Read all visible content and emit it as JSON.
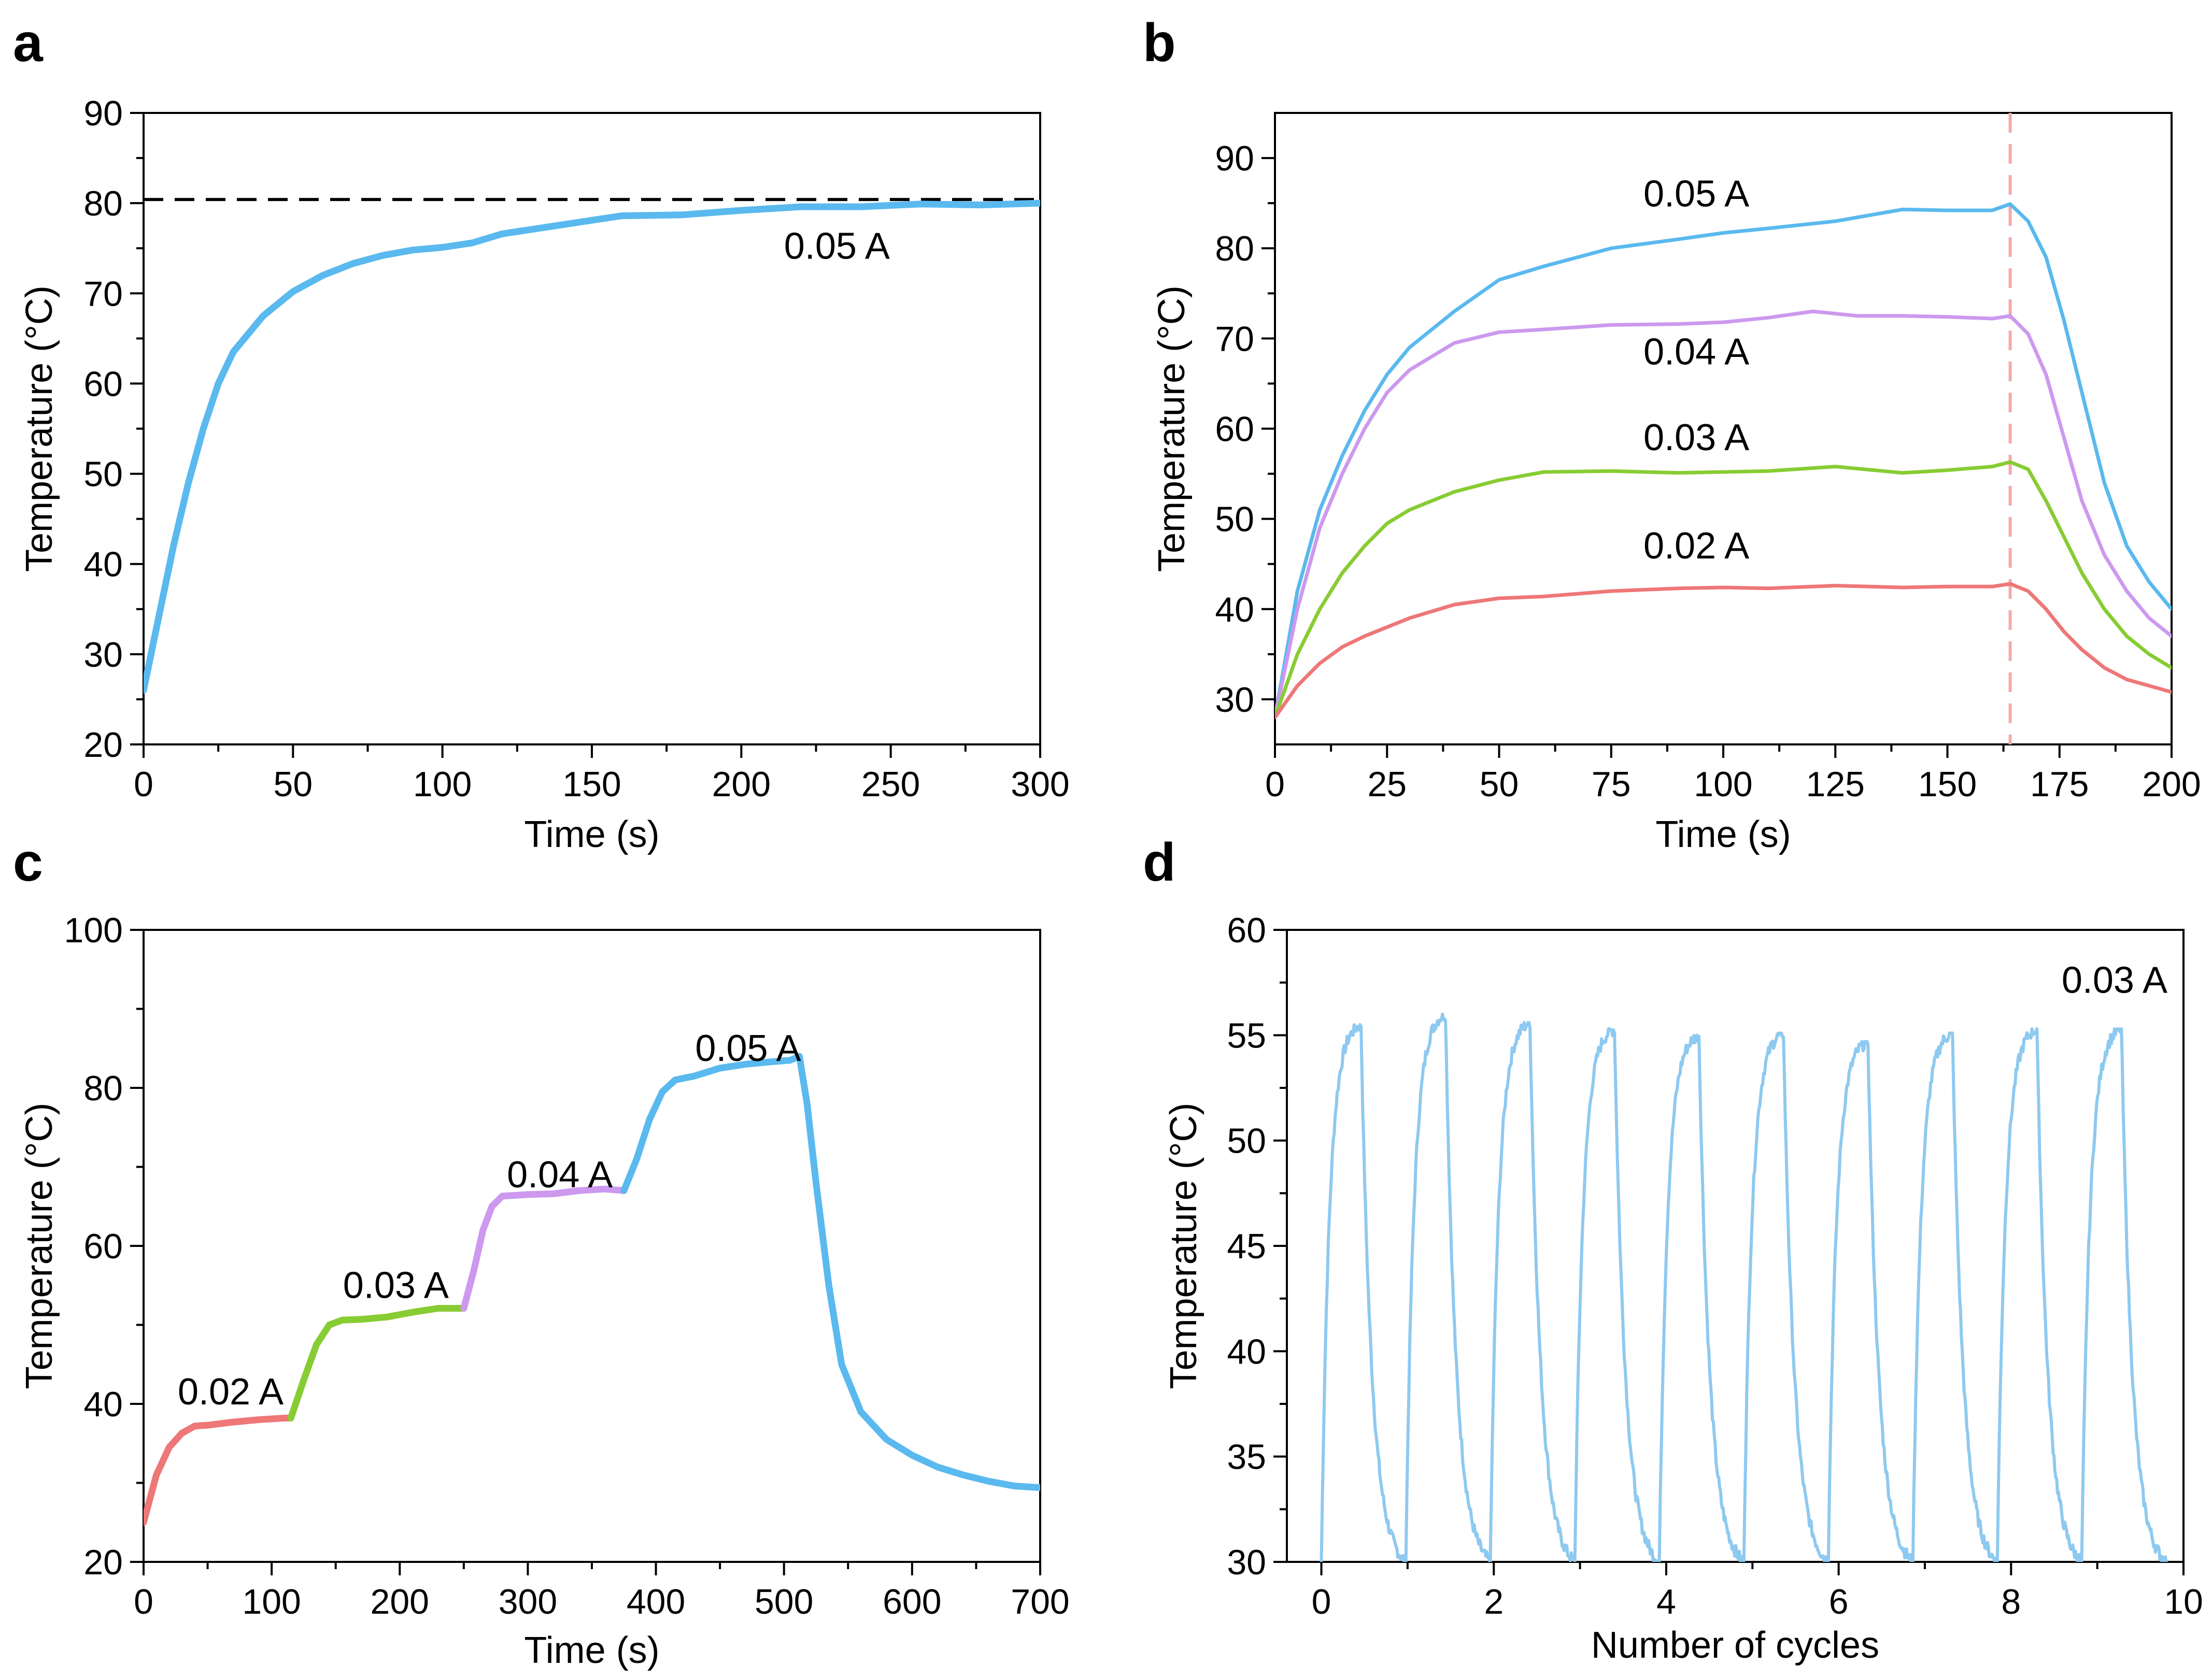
{
  "figure": {
    "panels": [
      "a",
      "b",
      "c",
      "d"
    ]
  },
  "chart_data": [
    {
      "panel": "a",
      "type": "line",
      "xlabel": "Time (s)",
      "ylabel": "Temperature (°C)",
      "xlim": [
        0,
        300
      ],
      "ylim": [
        20,
        90
      ],
      "xticks": [
        0,
        50,
        100,
        150,
        200,
        250,
        300
      ],
      "yticks": [
        20,
        30,
        40,
        50,
        60,
        70,
        80,
        90
      ],
      "reference_line": {
        "y": 80.4,
        "style": "dashed",
        "color": "#000000"
      },
      "annotations": [
        {
          "text": "0.05 A",
          "x": 232,
          "y": 75.2
        }
      ],
      "series": [
        {
          "name": "0.05 A",
          "color": "#5ab9ee",
          "x": [
            0,
            5,
            10,
            15,
            20,
            25,
            30,
            40,
            50,
            60,
            70,
            80,
            90,
            100,
            110,
            120,
            140,
            160,
            180,
            200,
            220,
            240,
            260,
            280,
            300
          ],
          "y": [
            26,
            34,
            42,
            49,
            55,
            60,
            63.5,
            67.5,
            70.2,
            72,
            73.3,
            74.2,
            74.8,
            75.1,
            75.6,
            76.6,
            77.6,
            78.6,
            78.7,
            79.2,
            79.6,
            79.6,
            79.9,
            79.8,
            80
          ]
        }
      ]
    },
    {
      "panel": "b",
      "type": "line",
      "xlabel": "Time (s)",
      "ylabel": "Temperature (°C)",
      "xlim": [
        0,
        200
      ],
      "ylim": [
        25,
        95
      ],
      "xticks": [
        0,
        25,
        50,
        75,
        100,
        125,
        150,
        175,
        200
      ],
      "yticks": [
        30,
        40,
        50,
        60,
        70,
        80,
        90
      ],
      "reference_line": {
        "x": 164,
        "style": "dashed",
        "color": "#f4aaaa"
      },
      "annotations": [
        {
          "text": "0.05 A",
          "x": 94,
          "y": 86
        },
        {
          "text": "0.04 A",
          "x": 94,
          "y": 68.5
        },
        {
          "text": "0.03 A",
          "x": 94,
          "y": 59
        },
        {
          "text": "0.02 A",
          "x": 94,
          "y": 47
        }
      ],
      "series": [
        {
          "name": "0.05 A",
          "color": "#5ab9ee",
          "x": [
            0,
            5,
            10,
            15,
            20,
            25,
            30,
            40,
            50,
            60,
            75,
            90,
            100,
            110,
            125,
            140,
            150,
            160,
            164,
            168,
            172,
            176,
            180,
            185,
            190,
            195,
            200
          ],
          "y": [
            28,
            42,
            51,
            57,
            62,
            66,
            69,
            73,
            76.5,
            78,
            80,
            81,
            81.7,
            82.2,
            83,
            84.3,
            84.2,
            84.2,
            84.9,
            83,
            79,
            72,
            64,
            54,
            47,
            43,
            40
          ]
        },
        {
          "name": "0.04 A",
          "color": "#cc99ee",
          "x": [
            0,
            5,
            10,
            15,
            20,
            25,
            30,
            40,
            50,
            60,
            75,
            90,
            100,
            110,
            120,
            130,
            140,
            150,
            160,
            164,
            168,
            172,
            176,
            180,
            185,
            190,
            195,
            200
          ],
          "y": [
            28,
            40,
            49,
            55,
            60,
            64,
            66.5,
            69.5,
            70.7,
            71,
            71.5,
            71.6,
            71.8,
            72.3,
            73,
            72.5,
            72.5,
            72.4,
            72.2,
            72.5,
            70.5,
            66,
            59,
            52,
            46,
            42,
            39,
            37
          ]
        },
        {
          "name": "0.03 A",
          "color": "#88cc33",
          "x": [
            0,
            5,
            10,
            15,
            20,
            25,
            30,
            40,
            50,
            60,
            75,
            90,
            100,
            110,
            125,
            140,
            150,
            160,
            164,
            168,
            172,
            176,
            180,
            185,
            190,
            195,
            200
          ],
          "y": [
            28,
            35,
            40,
            44,
            47,
            49.5,
            51,
            53,
            54.3,
            55.2,
            55.3,
            55.1,
            55.2,
            55.3,
            55.8,
            55.1,
            55.4,
            55.8,
            56.3,
            55.5,
            52,
            48,
            44,
            40,
            37,
            35,
            33.5
          ]
        },
        {
          "name": "0.02 A",
          "color": "#ee7777",
          "x": [
            0,
            5,
            10,
            15,
            20,
            25,
            30,
            40,
            50,
            60,
            75,
            90,
            100,
            110,
            125,
            140,
            150,
            160,
            164,
            168,
            172,
            176,
            180,
            185,
            190,
            195,
            200
          ],
          "y": [
            28,
            31.5,
            34,
            35.8,
            37,
            38,
            39,
            40.5,
            41.2,
            41.4,
            42,
            42.3,
            42.4,
            42.3,
            42.6,
            42.4,
            42.5,
            42.5,
            42.8,
            42,
            40,
            37.5,
            35.5,
            33.5,
            32.2,
            31.5,
            30.8
          ]
        }
      ]
    },
    {
      "panel": "c",
      "type": "line",
      "xlabel": "Time (s)",
      "ylabel": "Temperature (°C)",
      "xlim": [
        0,
        700
      ],
      "ylim": [
        20,
        100
      ],
      "xticks": [
        0,
        100,
        200,
        300,
        400,
        500,
        600,
        700
      ],
      "yticks": [
        20,
        40,
        60,
        80,
        100
      ],
      "annotations": [
        {
          "text": "0.02 A",
          "x": 68,
          "y": 41.5
        },
        {
          "text": "0.03 A",
          "x": 197,
          "y": 55
        },
        {
          "text": "0.04 A",
          "x": 325,
          "y": 69
        },
        {
          "text": "0.05 A",
          "x": 472,
          "y": 85
        }
      ],
      "series": [
        {
          "name": "0.02 A",
          "color": "#ee7777",
          "x": [
            0,
            10,
            20,
            30,
            40,
            50,
            70,
            90,
            110,
            115
          ],
          "y": [
            25,
            31,
            34.5,
            36.3,
            37.2,
            37.3,
            37.7,
            38,
            38.2,
            38.2
          ]
        },
        {
          "name": "0.03 A",
          "color": "#88cc33",
          "x": [
            115,
            125,
            135,
            145,
            155,
            170,
            190,
            210,
            230,
            245,
            250
          ],
          "y": [
            38.2,
            43,
            47.5,
            50,
            50.6,
            50.7,
            51,
            51.6,
            52.1,
            52.1,
            52.1
          ]
        },
        {
          "name": "0.04 A",
          "color": "#cc99ee",
          "x": [
            250,
            258,
            265,
            272,
            280,
            300,
            320,
            340,
            360,
            375
          ],
          "y": [
            52.1,
            57,
            62,
            65,
            66.3,
            66.5,
            66.6,
            67,
            67.2,
            67
          ]
        },
        {
          "name": "0.05 A",
          "color": "#5ab9ee",
          "x": [
            375,
            385,
            395,
            405,
            415,
            430,
            450,
            470,
            490,
            505,
            512,
            518,
            525,
            535,
            545,
            560,
            580,
            600,
            620,
            640,
            660,
            680,
            700
          ],
          "y": [
            67,
            71,
            76,
            79.5,
            81,
            81.5,
            82.5,
            83,
            83.3,
            83.5,
            84,
            78,
            68,
            55,
            45,
            39,
            35.5,
            33.5,
            32,
            31,
            30.2,
            29.6,
            29.4
          ]
        }
      ]
    },
    {
      "panel": "d",
      "type": "line",
      "xlabel": "Number of cycles",
      "ylabel": "Temperature (°C)",
      "xlim": [
        -0.4,
        10
      ],
      "ylim": [
        30,
        60
      ],
      "xticks": [
        0,
        2,
        4,
        6,
        8,
        10
      ],
      "yticks": [
        30,
        35,
        40,
        45,
        50,
        55,
        60
      ],
      "annotations": [
        {
          "text": "0.03 A",
          "x": 9.2,
          "y": 57.6
        }
      ],
      "cycle": {
        "count": 10,
        "period": 0.98,
        "peak_phase": 0.46,
        "base": 30
      },
      "series": [
        {
          "name": "0.03 A",
          "color": "#8ec9f0",
          "peak_temperatures": [
            55.5,
            56.0,
            55.6,
            55.3,
            55.0,
            55.1,
            54.7,
            55.1,
            55.3,
            55.3
          ]
        }
      ]
    }
  ]
}
